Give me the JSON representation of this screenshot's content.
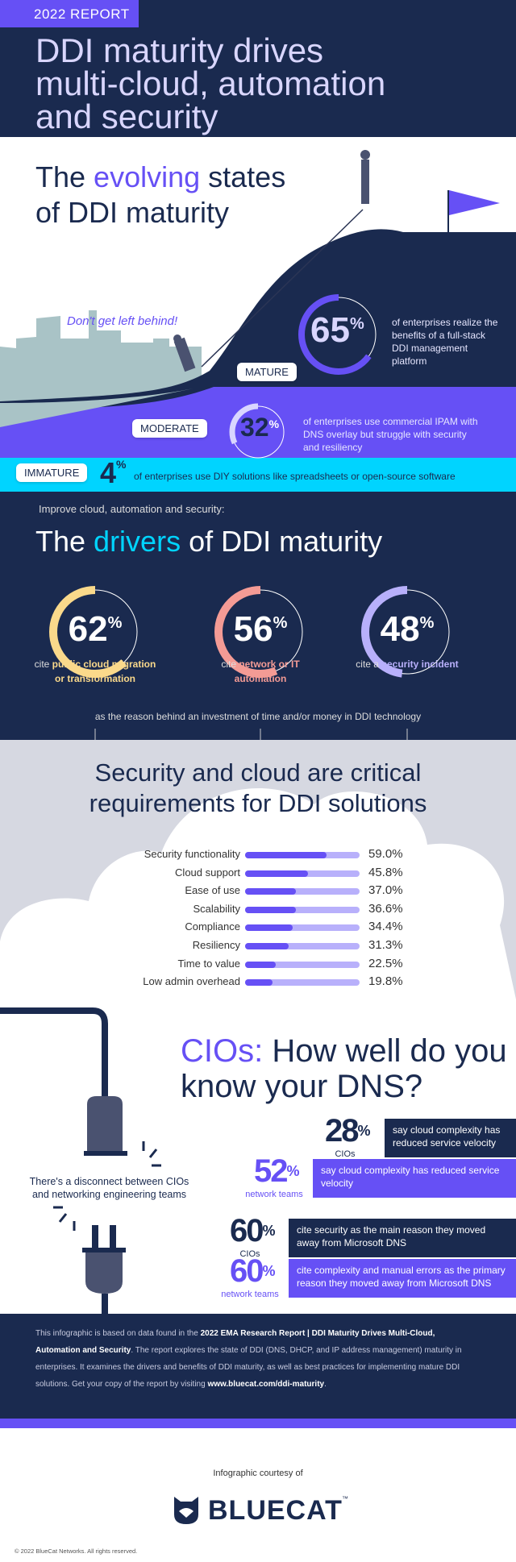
{
  "header": {
    "badge": "2022 REPORT",
    "title_lines": [
      "DDI maturity drives",
      "multi-cloud, automation",
      "and security"
    ]
  },
  "maturity": {
    "title_pre": "The ",
    "title_accent": "evolving",
    "title_post": " states",
    "title_line2": "of DDI maturity",
    "tagline": "Don't get left behind!",
    "levels": [
      {
        "label": "MATURE",
        "percent": "65",
        "text": "of enterprises realize the benefits of a full-stack DDI management platform",
        "color": "#6650f5"
      },
      {
        "label": "MODERATE",
        "percent": "32",
        "text": "of enterprises use commercial IPAM with DNS overlay but struggle with security and resiliency",
        "color": "#d9d6ff"
      },
      {
        "label": "IMMATURE",
        "percent": "4",
        "text": "of enterprises use DIY solutions like spreadsheets or open-source software",
        "color": "#00d4ff"
      }
    ]
  },
  "drivers": {
    "kicker": "Improve cloud, automation and security:",
    "title_pre": "The ",
    "title_accent": "drivers",
    "title_post": " of DDI maturity",
    "items": [
      {
        "percent": "62",
        "value": 62,
        "pre": "cite ",
        "highlight": "public cloud migration or transformation",
        "color": "#fad98b"
      },
      {
        "percent": "56",
        "value": 56,
        "pre": "cite ",
        "highlight": "network or IT automation",
        "color": "#f49b95"
      },
      {
        "percent": "48",
        "value": 48,
        "pre": "cite a ",
        "highlight": "security incident",
        "color": "#b8b0fb"
      }
    ],
    "footnote": "as the reason behind an investment of time and/or money in DDI technology"
  },
  "requirements": {
    "title_lines": [
      "Security and cloud are critical",
      "requirements for DDI solutions"
    ]
  },
  "chart_data": {
    "type": "bar",
    "orientation": "horizontal",
    "categories": [
      "Security functionality",
      "Cloud support",
      "Ease of use",
      "Scalability",
      "Compliance",
      "Resiliency",
      "Time to value",
      "Low admin overhead"
    ],
    "values": [
      59.0,
      45.8,
      37.0,
      36.6,
      34.4,
      31.3,
      22.5,
      19.8
    ],
    "labels": [
      "59.0%",
      "45.8%",
      "37.0%",
      "36.6%",
      "34.4%",
      "31.3%",
      "22.5%",
      "19.8%"
    ],
    "fill_color": "#6650f5",
    "track_color": "#b8b0fb"
  },
  "cios": {
    "title_accent": "CIOs:",
    "title_post": " How well do you",
    "title_line2": "know your DNS?",
    "disconnect": "There's a disconnect between CIOs and networking engineering teams",
    "stats": [
      {
        "percent": "28",
        "who": "CIOs",
        "text": "say cloud complexity has reduced service velocity"
      },
      {
        "percent": "52",
        "who": "network teams",
        "text": "say cloud complexity has reduced service velocity"
      },
      {
        "percent": "60",
        "who": "CIOs",
        "text": "cite security as the main reason they moved away from Microsoft DNS"
      },
      {
        "percent": "60",
        "who": "network teams",
        "text": "cite complexity and manual errors as the primary reason they moved away from Microsoft DNS"
      }
    ]
  },
  "footer": {
    "p1": "This infographic is based on data found in the ",
    "b1": "2022 EMA Research Report | DDI Maturity Drives Multi-Cloud, Automation and Security",
    "p2": ". The report explores the state of DDI (DNS, DHCP, and IP address management) maturity in enterprises. It examines the drivers and benefits of DDI maturity, as well as best practices for implementing mature DDI solutions. Get your copy of the report by visiting ",
    "url": "www.bluecat.com/ddi-maturity",
    "p3": ".",
    "courtesy": "Infographic courtesy of",
    "logo": "BLUECAT",
    "tm": "™",
    "copyright": "© 2022 BlueCat Networks. All rights reserved."
  }
}
